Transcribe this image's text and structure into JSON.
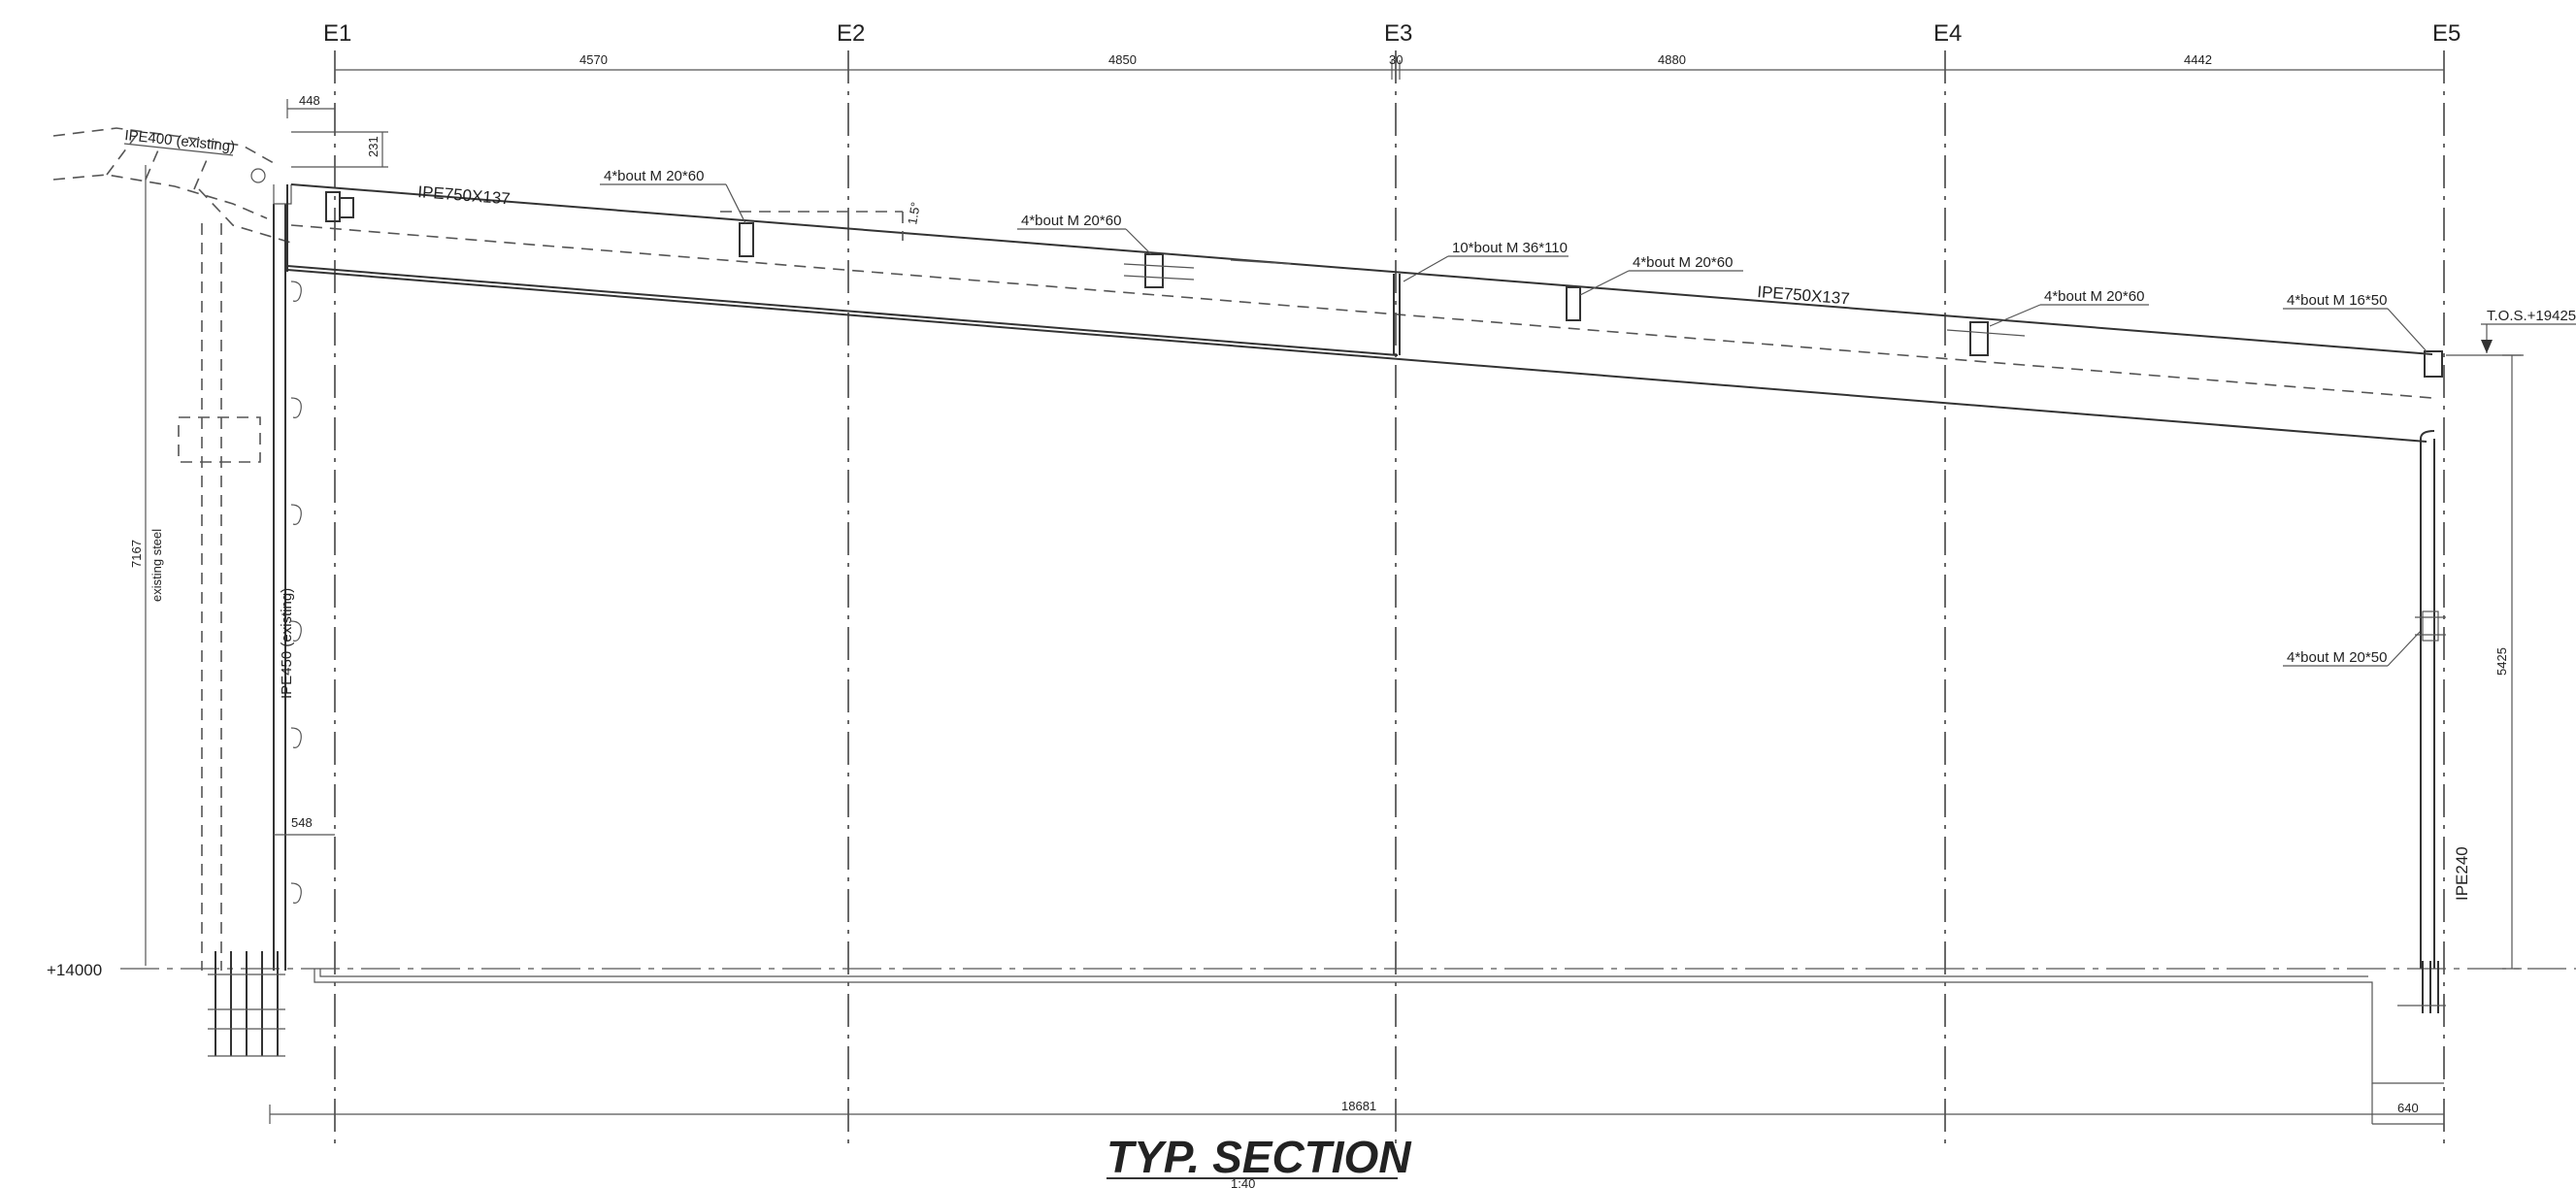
{
  "title": "TYP. SECTION",
  "scale": "1:40",
  "axes": [
    "E1",
    "E2",
    "E3",
    "E4",
    "E5"
  ],
  "top_dimensions": [
    "4570",
    "4850",
    "30",
    "4880",
    "4442"
  ],
  "small_dimensions": {
    "d448": "448",
    "d231": "231",
    "d7167": "7167",
    "existing_steel": "existing steel",
    "d548": "548",
    "d5425": "5425",
    "d18681": "18681",
    "d640": "640",
    "slope": "1.5°"
  },
  "labels": {
    "ipe400": "IPE400  (existing)",
    "ipe450": "IPE450  (existing)",
    "beam_left": "IPE750X137",
    "beam_right": "IPE750X137",
    "ipe240": "IPE240",
    "bolt_1": "4*bout M 20*60",
    "bolt_2": "4*bout M 20*60",
    "bolt_3": "10*bout M 36*110",
    "bolt_4": "4*bout M 20*60",
    "bolt_5": "4*bout M 20*60",
    "bolt_6": "4*bout M 16*50",
    "bolt_7": "4*bout M 20*50",
    "tos": "T.O.S.+19425",
    "level": "+14000"
  },
  "colors": {
    "ink": "#333333",
    "background": "#ffffff"
  }
}
